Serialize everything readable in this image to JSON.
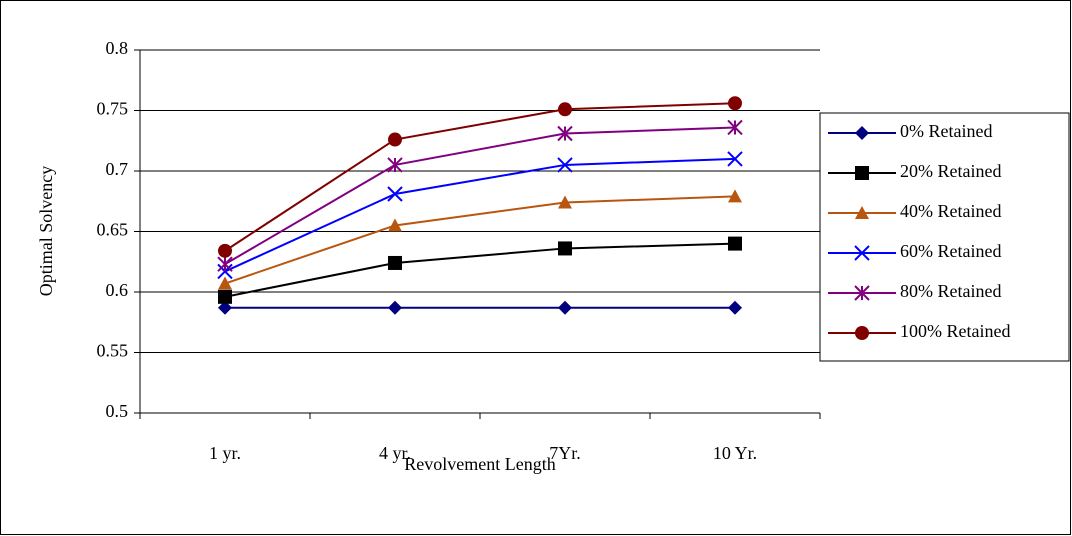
{
  "chart_data": {
    "type": "line",
    "x_label": "Revolvement Length",
    "y_label": "Optimal Solvency",
    "categories": [
      "1 yr.",
      "4 yr.",
      "7Yr.",
      "10 Yr."
    ],
    "ylim": [
      0.5,
      0.8
    ],
    "yticks": [
      0.5,
      0.55,
      0.6,
      0.65,
      0.7,
      0.75,
      0.8
    ],
    "grid": true,
    "legend": "right",
    "series": [
      {
        "name": "0% Retained",
        "color": "#000080",
        "marker": "diamond",
        "values": [
          0.587,
          0.587,
          0.587,
          0.587
        ]
      },
      {
        "name": "20% Retained",
        "color": "#000000",
        "marker": "square",
        "values": [
          0.596,
          0.624,
          0.636,
          0.64
        ]
      },
      {
        "name": "40% Retained",
        "color": "#b8560f",
        "marker": "triangle",
        "values": [
          0.607,
          0.655,
          0.674,
          0.679
        ]
      },
      {
        "name": "60% Retained",
        "color": "#0000ff",
        "marker": "x",
        "values": [
          0.617,
          0.681,
          0.705,
          0.71
        ]
      },
      {
        "name": "80% Retained",
        "color": "#800080",
        "marker": "star",
        "values": [
          0.623,
          0.705,
          0.731,
          0.736
        ]
      },
      {
        "name": "100% Retained",
        "color": "#800000",
        "marker": "circle",
        "values": [
          0.634,
          0.726,
          0.751,
          0.756
        ]
      }
    ]
  }
}
